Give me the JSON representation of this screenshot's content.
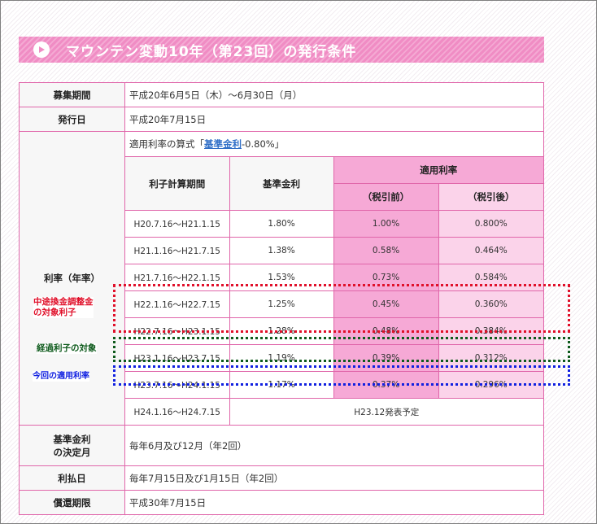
{
  "title": "マウンテン変動10年（第23回）の発行条件",
  "rows": {
    "recruit": {
      "label": "募集期間",
      "value": "平成20年6月5日（木）～6月30日（月）"
    },
    "issue": {
      "label": "発行日",
      "value": "平成20年7月15日"
    },
    "rate": {
      "label": "利率（年率）",
      "formula_prefix": "適用利率の算式「",
      "formula_link": "基準金利",
      "formula_suffix": "-0.80%」",
      "headers": {
        "period": "利子計算期間",
        "base": "基準金利",
        "applied": "適用利率",
        "pretax": "（税引前）",
        "aftertax": "（税引後）"
      },
      "periods": [
        {
          "period": "H20.7.16～H21.1.15",
          "base": "1.80%",
          "pretax": "1.00%",
          "aftertax": "0.800%"
        },
        {
          "period": "H21.1.16～H21.7.15",
          "base": "1.38%",
          "pretax": "0.58%",
          "aftertax": "0.464%"
        },
        {
          "period": "H21.7.16～H22.1.15",
          "base": "1.53%",
          "pretax": "0.73%",
          "aftertax": "0.584%"
        },
        {
          "period": "H22.1.16～H22.7.15",
          "base": "1.25%",
          "pretax": "0.45%",
          "aftertax": "0.360%"
        },
        {
          "period": "H22.7.16～H23.1.15",
          "base": "1.28%",
          "pretax": "0.48%",
          "aftertax": "0.384%"
        },
        {
          "period": "H23.1.16～H23.7.15",
          "base": "1.19%",
          "pretax": "0.39%",
          "aftertax": "0.312%"
        },
        {
          "period": "H23.7.16～H24.1.15",
          "base": "1.17%",
          "pretax": "0.37%",
          "aftertax": "0.296%"
        }
      ],
      "last_period": "H24.1.16～H24.7.15",
      "last_note": "H23.12発表予定"
    },
    "decision": {
      "label_line1": "基準金利",
      "label_line2": "の決定月",
      "value": "毎年6月及び12月（年2回）"
    },
    "payment": {
      "label": "利払日",
      "value": "毎年7月15日及び1月15日（年2回）"
    },
    "redemption": {
      "label": "償還期限",
      "value": "平成30年7月15日"
    }
  },
  "annotations": {
    "red_line1": "中途換金調整金",
    "red_line2": "の対象利子",
    "green": "経過利子の対象",
    "blue": "今回の適用利率"
  },
  "colors": {
    "accent": "#f08cc4",
    "border": "#e066aa",
    "applied": "#f6a9d6",
    "aftertax": "#fbd3ea",
    "red": "#e0102a",
    "green": "#0e5a1c",
    "blue": "#1020e0"
  }
}
